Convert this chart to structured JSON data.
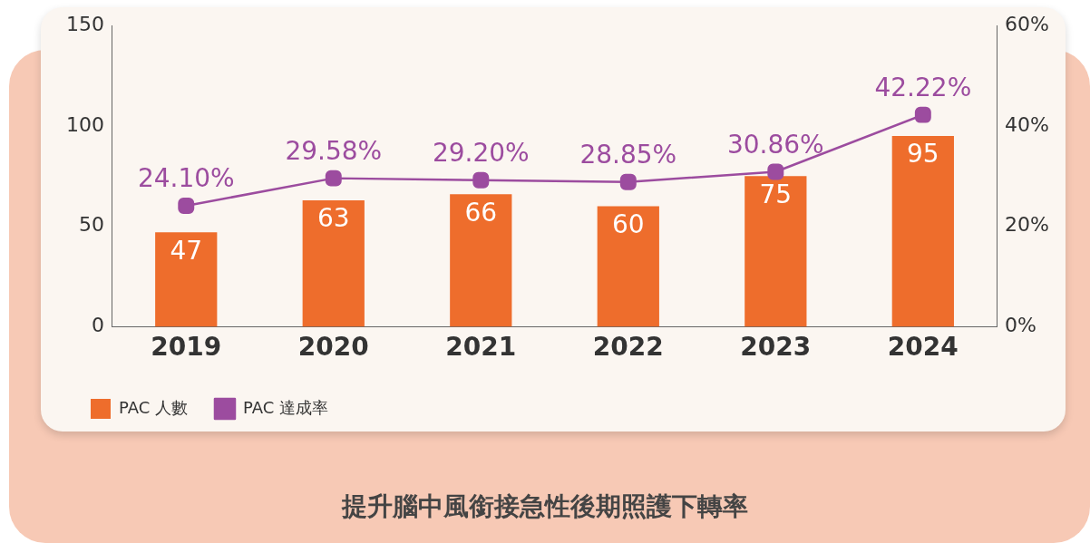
{
  "chart_data": {
    "type": "bar",
    "title": "提升腦中風銜接急性後期照護下轉率",
    "categories": [
      "2019",
      "2020",
      "2021",
      "2022",
      "2023",
      "2024"
    ],
    "series": [
      {
        "name": "PAC 人數",
        "color": "#ee6d2c",
        "values": [
          47,
          63,
          66,
          60,
          75,
          95
        ],
        "value_labels": [
          "47",
          "63",
          "66",
          "60",
          "75",
          "95"
        ]
      },
      {
        "name": "PAC 達成率",
        "type": "line",
        "axis": "y2",
        "color": "#9c4c9f",
        "marker": "square",
        "values": [
          24.1,
          29.58,
          29.2,
          28.85,
          30.86,
          42.22
        ],
        "value_labels": [
          "24.10%",
          "29.58%",
          "29.20%",
          "28.85%",
          "30.86%",
          "42.22%"
        ]
      }
    ],
    "ylim": [
      0,
      150
    ],
    "yticks": [
      0,
      50,
      100,
      150
    ],
    "y2lim": [
      0,
      60
    ],
    "y2ticks": [
      {
        "value": 0,
        "label": "0%"
      },
      {
        "value": 20,
        "label": "20%"
      },
      {
        "value": 40,
        "label": "40%"
      },
      {
        "value": 60,
        "label": "60%"
      }
    ],
    "grid": false,
    "legend": "bottom left"
  }
}
